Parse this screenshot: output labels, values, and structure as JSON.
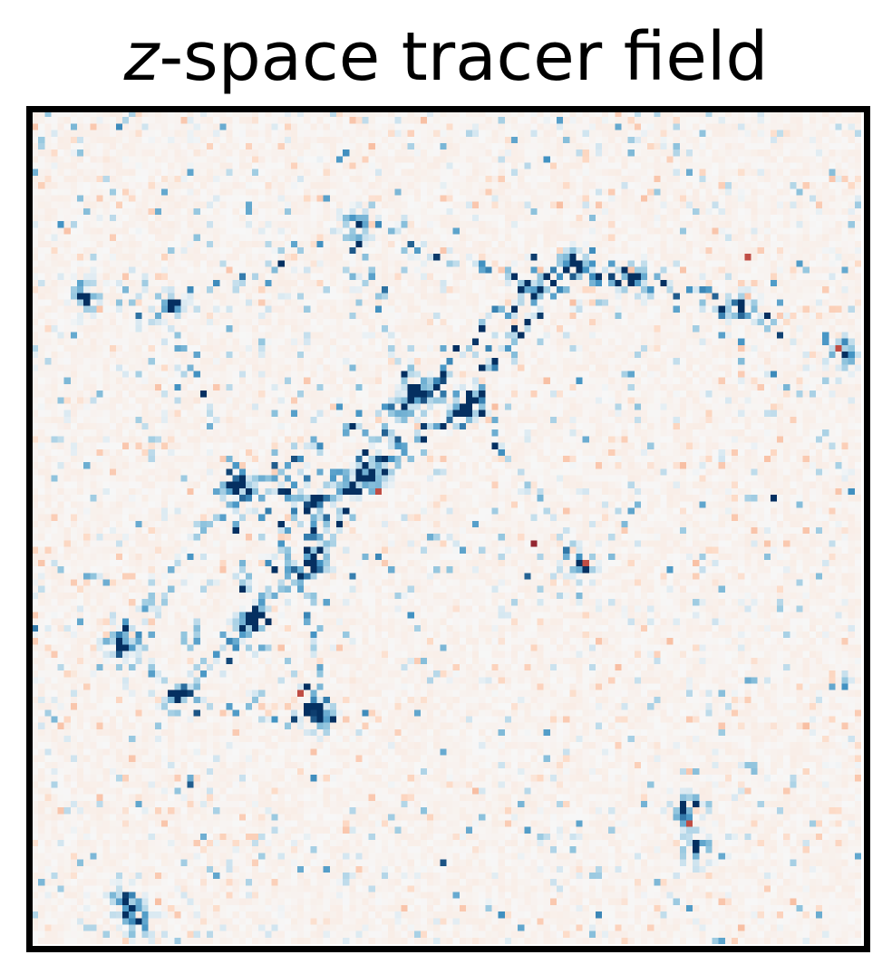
{
  "chart_data": {
    "type": "heatmap",
    "title_var": "z",
    "title_rest": "-space tracer field",
    "xlabel": "",
    "ylabel": "",
    "colormap": "RdBu",
    "colormap_stops": [
      "#67001f",
      "#d6604d",
      "#f4a582",
      "#fddbc7",
      "#f7f7f7",
      "#d1e5f0",
      "#92c5de",
      "#4393c3",
      "#053061"
    ],
    "grid": false,
    "axes_ticks": false,
    "grid_resolution": [
      128,
      128
    ],
    "background_level": 0.0,
    "value_range": [
      -1,
      1
    ],
    "notable_peaks": [
      {
        "col": 50,
        "row": 17,
        "value": 1.0
      },
      {
        "col": 92,
        "row": 25,
        "value": 1.0
      },
      {
        "col": 8,
        "row": 28,
        "value": 1.0
      },
      {
        "col": 21,
        "row": 30,
        "value": 1.0
      },
      {
        "col": 109,
        "row": 30,
        "value": 1.0
      },
      {
        "col": 83,
        "row": 23,
        "value": 1.0
      },
      {
        "col": 76,
        "row": 26,
        "value": 1.0
      },
      {
        "col": 59,
        "row": 43,
        "value": 1.0
      },
      {
        "col": 67,
        "row": 45,
        "value": 1.0
      },
      {
        "col": 125,
        "row": 37,
        "value": 1.0
      },
      {
        "col": 31,
        "row": 57,
        "value": 1.0
      },
      {
        "col": 43,
        "row": 60,
        "value": 1.0
      },
      {
        "col": 52,
        "row": 56,
        "value": 1.0
      },
      {
        "col": 84,
        "row": 69,
        "value": 1.0
      },
      {
        "col": 43,
        "row": 69,
        "value": 1.0
      },
      {
        "col": 33,
        "row": 78,
        "value": 1.0
      },
      {
        "col": 13,
        "row": 81,
        "value": 1.0
      },
      {
        "col": 22,
        "row": 90,
        "value": 1.0
      },
      {
        "col": 44,
        "row": 93,
        "value": 1.0
      },
      {
        "col": 100,
        "row": 107,
        "value": 1.0
      },
      {
        "col": 102,
        "row": 113,
        "value": 1.0
      },
      {
        "col": 14,
        "row": 121,
        "value": 1.0
      },
      {
        "col": 16,
        "row": 124,
        "value": 1.0
      }
    ],
    "notable_negatives": [
      {
        "col": 77,
        "row": 66,
        "value": -0.9
      },
      {
        "col": 85,
        "row": 69,
        "value": -0.8
      },
      {
        "col": 110,
        "row": 22,
        "value": -0.8
      },
      {
        "col": 41,
        "row": 89,
        "value": -0.8
      },
      {
        "col": 124,
        "row": 36,
        "value": -0.8
      },
      {
        "col": 101,
        "row": 109,
        "value": -0.8
      },
      {
        "col": 53,
        "row": 58,
        "value": -0.8
      }
    ]
  }
}
